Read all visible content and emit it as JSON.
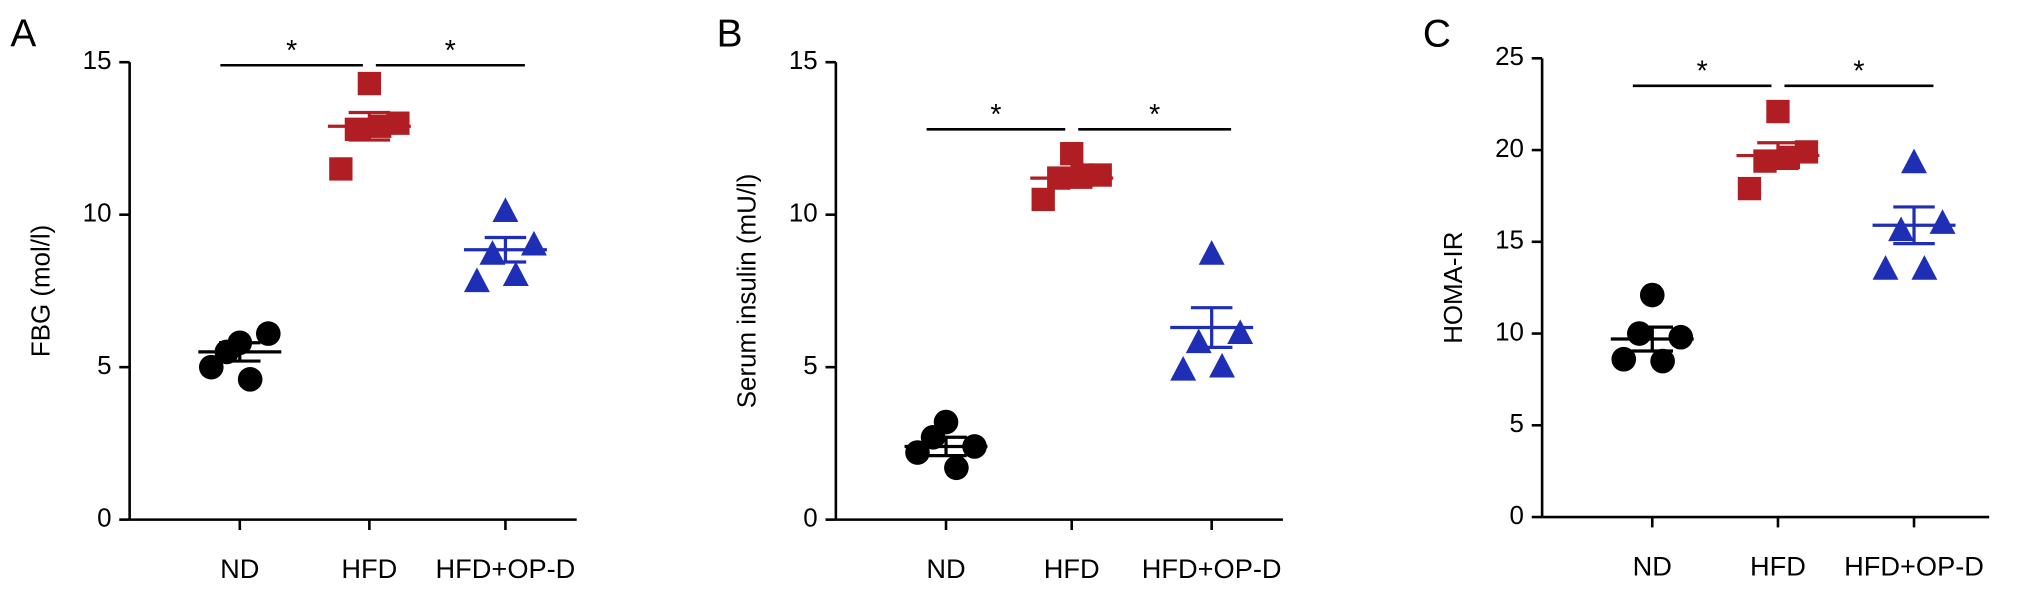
{
  "chart_data": [
    {
      "type": "dotplot",
      "panel": "A",
      "ylabel": "FBG (mol/l)",
      "categories": [
        "ND",
        "HFD",
        "HFD+OP-D"
      ],
      "colors": [
        "#000000",
        "#b01e23",
        "#1f2fb5"
      ],
      "markers": [
        "circle",
        "square",
        "triangle"
      ],
      "points": [
        [
          5.8,
          6.1,
          5.5,
          4.6,
          5.0
        ],
        [
          14.3,
          13.0,
          12.8,
          12.9,
          11.5
        ],
        [
          10.1,
          9.0,
          8.7,
          8.0,
          7.8
        ]
      ],
      "means": [
        5.5,
        12.9,
        8.85
      ],
      "errors": [
        0.3,
        0.45,
        0.4
      ],
      "ylim": [
        0,
        15
      ],
      "yticks": [
        0,
        5,
        10,
        15
      ],
      "significance": [
        {
          "from": 0,
          "to": 1,
          "y": 14.9,
          "text": "*"
        },
        {
          "from": 1,
          "to": 2,
          "y": 14.9,
          "text": "*"
        }
      ]
    },
    {
      "type": "dotplot",
      "panel": "B",
      "ylabel": "Serum insulin (mU/l)",
      "categories": [
        "ND",
        "HFD",
        "HFD+OP-D"
      ],
      "colors": [
        "#000000",
        "#b01e23",
        "#1f2fb5"
      ],
      "markers": [
        "circle",
        "square",
        "triangle"
      ],
      "points": [
        [
          3.2,
          2.4,
          2.7,
          1.7,
          2.2
        ],
        [
          12.0,
          11.3,
          11.2,
          11.3,
          10.5
        ],
        [
          8.7,
          6.1,
          5.8,
          5.0,
          4.9
        ]
      ],
      "means": [
        2.4,
        11.2,
        6.3
      ],
      "errors": [
        0.3,
        0.3,
        0.65
      ],
      "ylim": [
        0,
        15
      ],
      "yticks": [
        0,
        5,
        10,
        15
      ],
      "significance": [
        {
          "from": 0,
          "to": 1,
          "y": 12.8,
          "text": "*"
        },
        {
          "from": 1,
          "to": 2,
          "y": 12.8,
          "text": "*"
        }
      ]
    },
    {
      "type": "dotplot",
      "panel": "C",
      "ylabel": "HOMA-IR",
      "categories": [
        "ND",
        "HFD",
        "HFD+OP-D"
      ],
      "colors": [
        "#000000",
        "#b01e23",
        "#1f2fb5"
      ],
      "markers": [
        "circle",
        "square",
        "triangle"
      ],
      "points": [
        [
          12.1,
          9.8,
          10.0,
          8.5,
          8.6
        ],
        [
          22.1,
          19.9,
          19.4,
          19.6,
          17.9
        ],
        [
          19.3,
          16.0,
          15.6,
          13.5,
          13.5
        ]
      ],
      "means": [
        9.7,
        19.7,
        15.9
      ],
      "errors": [
        0.65,
        0.7,
        1.0
      ],
      "ylim": [
        0,
        25
      ],
      "yticks": [
        0,
        5,
        10,
        15,
        20,
        25
      ],
      "significance": [
        {
          "from": 0,
          "to": 1,
          "y": 23.5,
          "text": "*"
        },
        {
          "from": 1,
          "to": 2,
          "y": 23.5,
          "text": "*"
        }
      ]
    }
  ]
}
